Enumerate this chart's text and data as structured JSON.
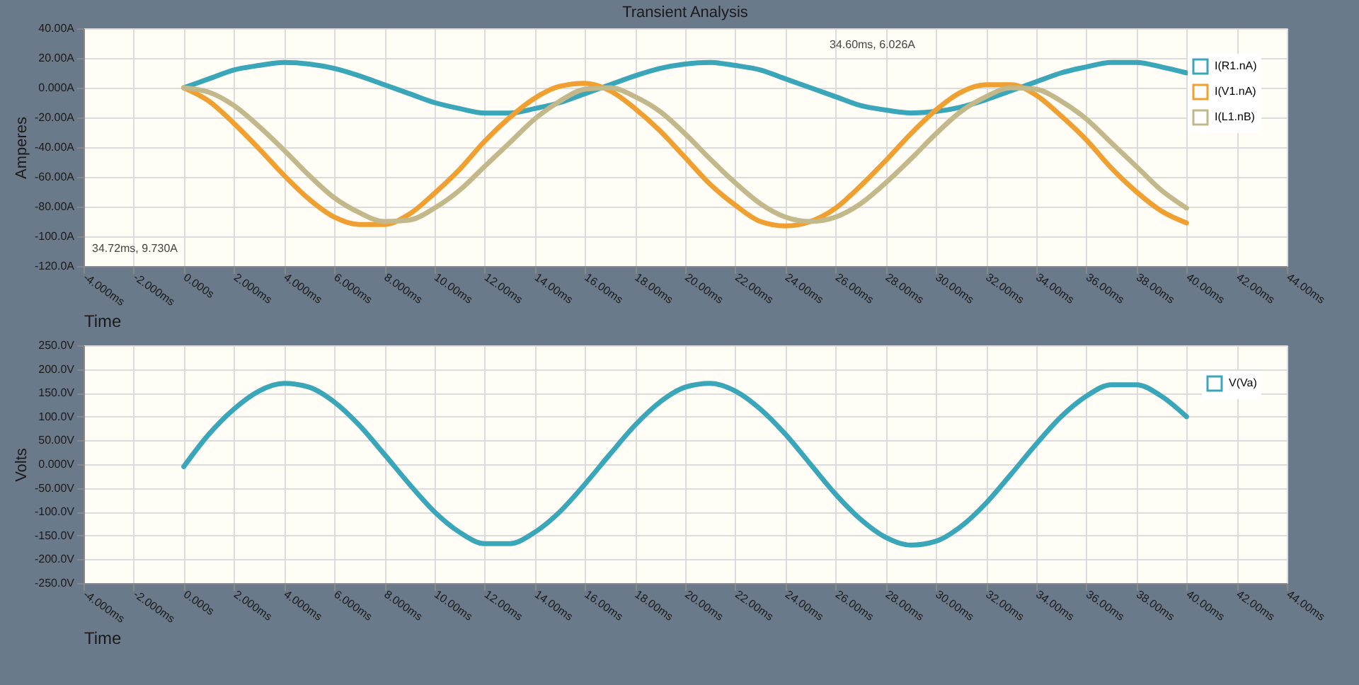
{
  "chart_data": [
    {
      "type": "line",
      "title": "Transient Analysis",
      "xlabel": "Time",
      "ylabel": "Amperes",
      "grid": true,
      "legend": "top right",
      "x": [
        0,
        1,
        2,
        3,
        4,
        5,
        6,
        7,
        8,
        9,
        10,
        11,
        12,
        13,
        14,
        15,
        16,
        17,
        18,
        19,
        20,
        21,
        22,
        23,
        24,
        25,
        26,
        27,
        28,
        29,
        30,
        31,
        32,
        33,
        34,
        35,
        36,
        37,
        38,
        39,
        40
      ],
      "xlim": [
        -4,
        44
      ],
      "xticks": [
        {
          "value": -4,
          "label": "-4.000ms"
        },
        {
          "value": -2,
          "label": "-2.000ms"
        },
        {
          "value": 0,
          "label": "0.000s"
        },
        {
          "value": 2,
          "label": "2.000ms"
        },
        {
          "value": 4,
          "label": "4.000ms"
        },
        {
          "value": 6,
          "label": "6.000ms"
        },
        {
          "value": 8,
          "label": "8.000ms"
        },
        {
          "value": 10,
          "label": "10.00ms"
        },
        {
          "value": 12,
          "label": "12.00ms"
        },
        {
          "value": 14,
          "label": "14.00ms"
        },
        {
          "value": 16,
          "label": "16.00ms"
        },
        {
          "value": 18,
          "label": "18.00ms"
        },
        {
          "value": 20,
          "label": "20.00ms"
        },
        {
          "value": 22,
          "label": "22.00ms"
        },
        {
          "value": 24,
          "label": "24.00ms"
        },
        {
          "value": 26,
          "label": "26.00ms"
        },
        {
          "value": 28,
          "label": "28.00ms"
        },
        {
          "value": 30,
          "label": "30.00ms"
        },
        {
          "value": 32,
          "label": "32.00ms"
        },
        {
          "value": 34,
          "label": "34.00ms"
        },
        {
          "value": 36,
          "label": "36.00ms"
        },
        {
          "value": 38,
          "label": "38.00ms"
        },
        {
          "value": 40,
          "label": "40.00ms"
        },
        {
          "value": 42,
          "label": "42.00ms"
        },
        {
          "value": 44,
          "label": "44.00ms"
        }
      ],
      "ylim": [
        -120,
        40
      ],
      "yticks": [
        {
          "value": -120,
          "label": "-120.0A"
        },
        {
          "value": -100,
          "label": "-100.0A"
        },
        {
          "value": -80,
          "label": "-80.00A"
        },
        {
          "value": -60,
          "label": "-60.00A"
        },
        {
          "value": -40,
          "label": "-40.00A"
        },
        {
          "value": -20,
          "label": "-20.00A"
        },
        {
          "value": 0,
          "label": "0.000A"
        },
        {
          "value": 20,
          "label": "20.00A"
        },
        {
          "value": 40,
          "label": "40.00A"
        }
      ],
      "series": [
        {
          "name": "I(R1.nA)",
          "color": "#3aa6b9",
          "values": [
            0,
            6,
            12,
            15,
            17,
            16,
            13,
            8,
            2,
            -4,
            -10,
            -14,
            -17,
            -17,
            -14,
            -10,
            -4,
            2,
            8,
            13,
            16,
            17,
            15,
            12,
            6,
            0,
            -6,
            -12,
            -15,
            -17,
            -16,
            -13,
            -8,
            -2,
            4,
            10,
            14,
            17,
            17,
            14,
            10
          ]
        },
        {
          "name": "I(V1.nA)",
          "color": "#f0a030",
          "values": [
            0,
            -9,
            -24,
            -41,
            -59,
            -75,
            -87,
            -92,
            -92,
            -85,
            -71,
            -55,
            -36,
            -20,
            -7,
            1,
            3,
            -2,
            -14,
            -29,
            -47,
            -65,
            -79,
            -90,
            -93,
            -90,
            -81,
            -66,
            -49,
            -31,
            -15,
            -3,
            2,
            2,
            -5,
            -19,
            -35,
            -54,
            -70,
            -83,
            -91
          ]
        },
        {
          "name": "I(L1.nB)",
          "color": "#c2b88a",
          "values": [
            0,
            -3,
            -12,
            -26,
            -42,
            -59,
            -74,
            -84,
            -90,
            -89,
            -81,
            -69,
            -53,
            -37,
            -21,
            -9,
            -1,
            0,
            -6,
            -16,
            -31,
            -48,
            -64,
            -78,
            -87,
            -90,
            -87,
            -78,
            -64,
            -48,
            -31,
            -16,
            -6,
            0,
            -1,
            -9,
            -21,
            -37,
            -53,
            -69,
            -81
          ]
        }
      ],
      "annotations": [
        "34.72ms, 9.730A",
        "34.60ms, 6.026A"
      ]
    },
    {
      "type": "line",
      "xlabel": "Time",
      "ylabel": "Volts",
      "grid": true,
      "legend": "top right",
      "x": [
        0,
        1,
        2,
        3,
        4,
        5,
        6,
        7,
        8,
        9,
        10,
        11,
        12,
        13,
        14,
        15,
        16,
        17,
        18,
        19,
        20,
        21,
        22,
        23,
        24,
        25,
        26,
        27,
        28,
        29,
        30,
        31,
        32,
        33,
        34,
        35,
        36,
        37,
        38,
        39,
        40
      ],
      "xlim": [
        -4,
        44
      ],
      "xticks": [
        {
          "value": -4,
          "label": "-4.000ms"
        },
        {
          "value": -2,
          "label": "-2.000ms"
        },
        {
          "value": 0,
          "label": "0.000s"
        },
        {
          "value": 2,
          "label": "2.000ms"
        },
        {
          "value": 4,
          "label": "4.000ms"
        },
        {
          "value": 6,
          "label": "6.000ms"
        },
        {
          "value": 8,
          "label": "8.000ms"
        },
        {
          "value": 10,
          "label": "10.00ms"
        },
        {
          "value": 12,
          "label": "12.00ms"
        },
        {
          "value": 14,
          "label": "14.00ms"
        },
        {
          "value": 16,
          "label": "16.00ms"
        },
        {
          "value": 18,
          "label": "18.00ms"
        },
        {
          "value": 20,
          "label": "20.00ms"
        },
        {
          "value": 22,
          "label": "22.00ms"
        },
        {
          "value": 24,
          "label": "24.00ms"
        },
        {
          "value": 26,
          "label": "26.00ms"
        },
        {
          "value": 28,
          "label": "28.00ms"
        },
        {
          "value": 30,
          "label": "30.00ms"
        },
        {
          "value": 32,
          "label": "32.00ms"
        },
        {
          "value": 34,
          "label": "34.00ms"
        },
        {
          "value": 36,
          "label": "36.00ms"
        },
        {
          "value": 38,
          "label": "38.00ms"
        },
        {
          "value": 40,
          "label": "40.00ms"
        },
        {
          "value": 42,
          "label": "42.00ms"
        },
        {
          "value": 44,
          "label": "44.00ms"
        }
      ],
      "ylim": [
        -250,
        250
      ],
      "yticks": [
        {
          "value": -250,
          "label": "-250.0V"
        },
        {
          "value": -200,
          "label": "-200.0V"
        },
        {
          "value": -150,
          "label": "-150.0V"
        },
        {
          "value": -100,
          "label": "-100.0V"
        },
        {
          "value": -50,
          "label": "-50.00V"
        },
        {
          "value": 0,
          "label": "0.000V"
        },
        {
          "value": 50,
          "label": "50.00V"
        },
        {
          "value": 100,
          "label": "100.0V"
        },
        {
          "value": 150,
          "label": "150.0V"
        },
        {
          "value": 200,
          "label": "200.0V"
        },
        {
          "value": 250,
          "label": "250.0V"
        }
      ],
      "series": [
        {
          "name": "V(Va)",
          "color": "#3aa6b9",
          "values": [
            -5,
            63,
            116,
            154,
            170,
            162,
            131,
            82,
            21,
            -42,
            -100,
            -143,
            -167,
            -167,
            -143,
            -100,
            -42,
            21,
            82,
            131,
            162,
            170,
            154,
            116,
            63,
            0,
            -63,
            -116,
            -154,
            -170,
            -162,
            -131,
            -82,
            -21,
            42,
            100,
            143,
            167,
            167,
            143,
            100
          ]
        }
      ]
    }
  ]
}
